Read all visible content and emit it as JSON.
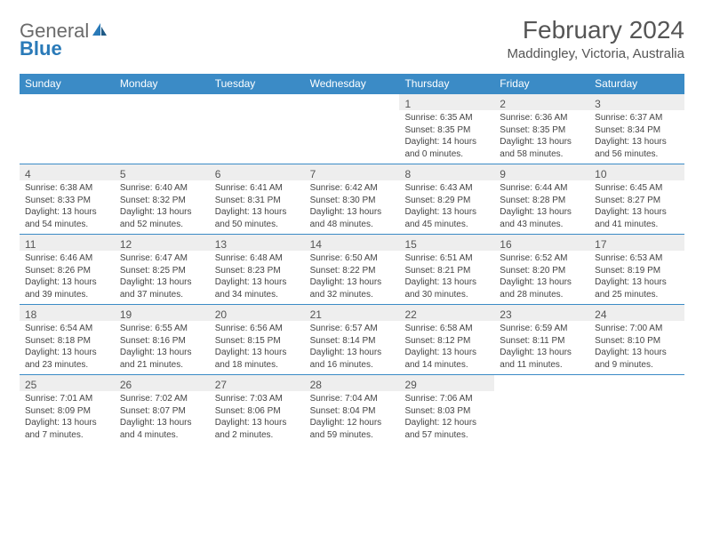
{
  "logo": {
    "general": "General",
    "blue": "Blue"
  },
  "title": "February 2024",
  "location": "Maddingley, Victoria, Australia",
  "colors": {
    "header_bg": "#3b8bc6",
    "row_border": "#3b8bc6",
    "date_bar": "#eeeeee",
    "text": "#444444",
    "title_text": "#555555"
  },
  "weekdays": [
    "Sunday",
    "Monday",
    "Tuesday",
    "Wednesday",
    "Thursday",
    "Friday",
    "Saturday"
  ],
  "weeks": [
    [
      {
        "blank": true
      },
      {
        "blank": true
      },
      {
        "blank": true
      },
      {
        "blank": true
      },
      {
        "d": "1",
        "sunrise": "6:35 AM",
        "sunset": "8:35 PM",
        "daylight": "14 hours and 0 minutes."
      },
      {
        "d": "2",
        "sunrise": "6:36 AM",
        "sunset": "8:35 PM",
        "daylight": "13 hours and 58 minutes."
      },
      {
        "d": "3",
        "sunrise": "6:37 AM",
        "sunset": "8:34 PM",
        "daylight": "13 hours and 56 minutes."
      }
    ],
    [
      {
        "d": "4",
        "sunrise": "6:38 AM",
        "sunset": "8:33 PM",
        "daylight": "13 hours and 54 minutes."
      },
      {
        "d": "5",
        "sunrise": "6:40 AM",
        "sunset": "8:32 PM",
        "daylight": "13 hours and 52 minutes."
      },
      {
        "d": "6",
        "sunrise": "6:41 AM",
        "sunset": "8:31 PM",
        "daylight": "13 hours and 50 minutes."
      },
      {
        "d": "7",
        "sunrise": "6:42 AM",
        "sunset": "8:30 PM",
        "daylight": "13 hours and 48 minutes."
      },
      {
        "d": "8",
        "sunrise": "6:43 AM",
        "sunset": "8:29 PM",
        "daylight": "13 hours and 45 minutes."
      },
      {
        "d": "9",
        "sunrise": "6:44 AM",
        "sunset": "8:28 PM",
        "daylight": "13 hours and 43 minutes."
      },
      {
        "d": "10",
        "sunrise": "6:45 AM",
        "sunset": "8:27 PM",
        "daylight": "13 hours and 41 minutes."
      }
    ],
    [
      {
        "d": "11",
        "sunrise": "6:46 AM",
        "sunset": "8:26 PM",
        "daylight": "13 hours and 39 minutes."
      },
      {
        "d": "12",
        "sunrise": "6:47 AM",
        "sunset": "8:25 PM",
        "daylight": "13 hours and 37 minutes."
      },
      {
        "d": "13",
        "sunrise": "6:48 AM",
        "sunset": "8:23 PM",
        "daylight": "13 hours and 34 minutes."
      },
      {
        "d": "14",
        "sunrise": "6:50 AM",
        "sunset": "8:22 PM",
        "daylight": "13 hours and 32 minutes."
      },
      {
        "d": "15",
        "sunrise": "6:51 AM",
        "sunset": "8:21 PM",
        "daylight": "13 hours and 30 minutes."
      },
      {
        "d": "16",
        "sunrise": "6:52 AM",
        "sunset": "8:20 PM",
        "daylight": "13 hours and 28 minutes."
      },
      {
        "d": "17",
        "sunrise": "6:53 AM",
        "sunset": "8:19 PM",
        "daylight": "13 hours and 25 minutes."
      }
    ],
    [
      {
        "d": "18",
        "sunrise": "6:54 AM",
        "sunset": "8:18 PM",
        "daylight": "13 hours and 23 minutes."
      },
      {
        "d": "19",
        "sunrise": "6:55 AM",
        "sunset": "8:16 PM",
        "daylight": "13 hours and 21 minutes."
      },
      {
        "d": "20",
        "sunrise": "6:56 AM",
        "sunset": "8:15 PM",
        "daylight": "13 hours and 18 minutes."
      },
      {
        "d": "21",
        "sunrise": "6:57 AM",
        "sunset": "8:14 PM",
        "daylight": "13 hours and 16 minutes."
      },
      {
        "d": "22",
        "sunrise": "6:58 AM",
        "sunset": "8:12 PM",
        "daylight": "13 hours and 14 minutes."
      },
      {
        "d": "23",
        "sunrise": "6:59 AM",
        "sunset": "8:11 PM",
        "daylight": "13 hours and 11 minutes."
      },
      {
        "d": "24",
        "sunrise": "7:00 AM",
        "sunset": "8:10 PM",
        "daylight": "13 hours and 9 minutes."
      }
    ],
    [
      {
        "d": "25",
        "sunrise": "7:01 AM",
        "sunset": "8:09 PM",
        "daylight": "13 hours and 7 minutes."
      },
      {
        "d": "26",
        "sunrise": "7:02 AM",
        "sunset": "8:07 PM",
        "daylight": "13 hours and 4 minutes."
      },
      {
        "d": "27",
        "sunrise": "7:03 AM",
        "sunset": "8:06 PM",
        "daylight": "13 hours and 2 minutes."
      },
      {
        "d": "28",
        "sunrise": "7:04 AM",
        "sunset": "8:04 PM",
        "daylight": "12 hours and 59 minutes."
      },
      {
        "d": "29",
        "sunrise": "7:06 AM",
        "sunset": "8:03 PM",
        "daylight": "12 hours and 57 minutes."
      },
      {
        "blank": true
      },
      {
        "blank": true
      }
    ]
  ],
  "labels": {
    "sunrise": "Sunrise: ",
    "sunset": "Sunset: ",
    "daylight": "Daylight: "
  }
}
